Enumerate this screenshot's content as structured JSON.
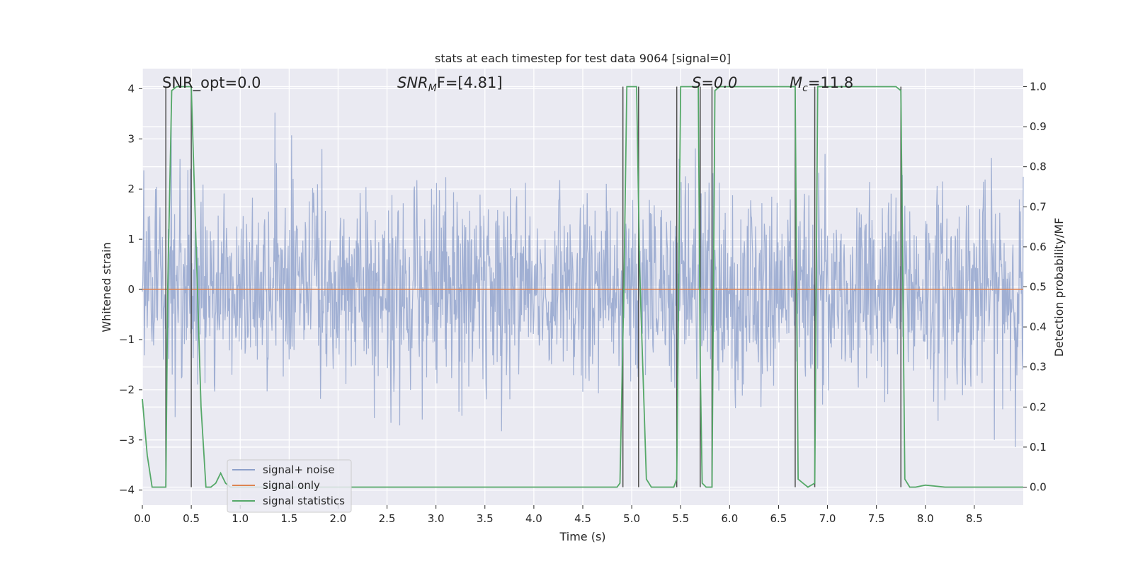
{
  "chart_data": {
    "type": "line",
    "title": "stats at each timestep for test data 9064 [signal=0]",
    "xlabel": "Time (s)",
    "ylabel": "Whitened strain",
    "y2label": "Detection probability/MF",
    "xlim": [
      0.0,
      9.0
    ],
    "ylim": [
      -4.3,
      4.4
    ],
    "y2lim": [
      -0.045,
      1.045
    ],
    "xticks": [
      "0.0",
      "0.5",
      "1.0",
      "1.5",
      "2.0",
      "2.5",
      "3.0",
      "3.5",
      "4.0",
      "4.5",
      "5.0",
      "5.5",
      "6.0",
      "6.5",
      "7.0",
      "7.5",
      "8.0",
      "8.5"
    ],
    "yticks": [
      "4",
      "3",
      "2",
      "1",
      "0",
      "−1",
      "−2",
      "−3",
      "−4"
    ],
    "y2ticks": [
      "1.0",
      "0.9",
      "0.8",
      "0.7",
      "0.6",
      "0.5",
      "0.4",
      "0.3",
      "0.2",
      "0.1",
      "0.0"
    ],
    "annotations": [
      {
        "label": "SNR_opt=0.0",
        "x": 0.2
      },
      {
        "label_main": "SNR",
        "label_sub": "M",
        "label_tail": "F=[4.81]",
        "x": 2.6
      },
      {
        "label": "S=0.0",
        "x": 5.6
      },
      {
        "label_main": "M",
        "label_sub": "c",
        "label_tail": "=11.8",
        "x": 6.6
      }
    ],
    "legend": {
      "location": "lower-left",
      "entries": [
        {
          "name": "signal+ noise",
          "color": "#8da0cb"
        },
        {
          "name": "signal only",
          "color": "#dd8452"
        },
        {
          "name": "signal statistics",
          "color": "#55a868"
        }
      ]
    },
    "series": [
      {
        "name": "signal+ noise",
        "axis": "left",
        "style": "dense-noise",
        "sample_rate_hz": 200,
        "amplitude_core": 1.0,
        "amplitude_peak": 4.0,
        "color": "#8da0cb"
      },
      {
        "name": "signal only",
        "axis": "left",
        "x": [
          0.0,
          9.0
        ],
        "y": [
          0.0,
          0.0
        ],
        "color": "#dd8452"
      },
      {
        "name": "signal statistics",
        "axis": "right",
        "color": "#55a868",
        "x": [
          0.0,
          0.05,
          0.1,
          0.24,
          0.26,
          0.3,
          0.35,
          0.4,
          0.45,
          0.5,
          0.55,
          0.6,
          0.65,
          0.7,
          0.75,
          0.8,
          0.85,
          0.9,
          0.95,
          1.0,
          1.5,
          2.0,
          2.5,
          3.0,
          3.5,
          4.0,
          4.5,
          4.85,
          4.88,
          4.92,
          4.95,
          5.05,
          5.08,
          5.15,
          5.2,
          5.3,
          5.43,
          5.46,
          5.5,
          5.68,
          5.7,
          5.72,
          5.76,
          5.82,
          5.85,
          5.9,
          6.0,
          6.67,
          6.7,
          6.75,
          6.8,
          6.87,
          6.9,
          6.94,
          7.0,
          7.7,
          7.75,
          7.79,
          7.84,
          7.9,
          8.0,
          8.2,
          8.5,
          9.0
        ],
        "y": [
          0.22,
          0.08,
          0.0,
          0.0,
          0.5,
          0.99,
          1.0,
          1.0,
          1.0,
          1.0,
          0.6,
          0.2,
          0.0,
          0.0,
          0.01,
          0.035,
          0.01,
          0.0,
          0.0,
          0.0,
          0.0,
          0.0,
          0.0,
          0.0,
          0.0,
          0.0,
          0.0,
          0.0,
          0.01,
          0.5,
          1.0,
          1.0,
          0.55,
          0.02,
          0.0,
          0.0,
          0.0,
          0.02,
          1.0,
          1.0,
          0.3,
          0.01,
          0.0,
          0.0,
          0.99,
          1.0,
          1.0,
          1.0,
          0.02,
          0.01,
          0.0,
          0.01,
          1.0,
          1.0,
          1.0,
          1.0,
          0.99,
          0.02,
          0.0,
          0.0,
          0.005,
          0.0,
          0.0,
          0.0
        ]
      }
    ],
    "vertical_markers_x": [
      0.24,
      0.5,
      4.91,
      5.07,
      5.46,
      5.7,
      5.82,
      6.67,
      6.87,
      7.75
    ]
  }
}
